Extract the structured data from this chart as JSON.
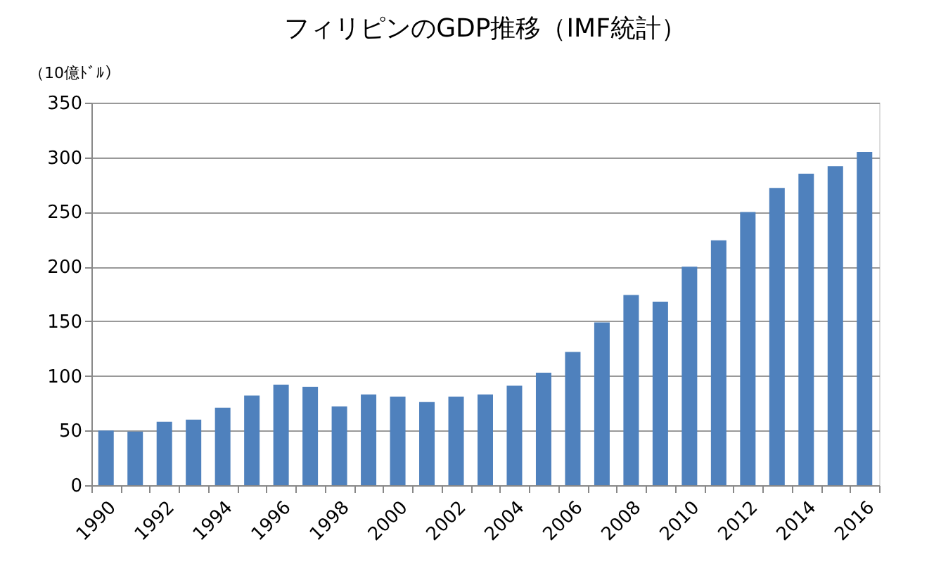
{
  "chart_data": {
    "type": "bar",
    "title": "フィリピンのGDP推移（IMF統計）",
    "ylabel": "（10億ﾄﾞﾙ）",
    "categories": [
      "1990",
      null,
      "1992",
      null,
      "1994",
      null,
      "1996",
      null,
      "1998",
      null,
      "2000",
      null,
      "2002",
      null,
      "2004",
      null,
      "2006",
      null,
      "2008",
      null,
      "2010",
      null,
      "2012",
      null,
      "2014",
      null,
      "2016"
    ],
    "values": [
      50,
      49,
      58,
      60,
      71,
      82,
      92,
      90,
      72,
      83,
      81,
      76,
      81,
      83,
      91,
      103,
      122,
      149,
      174,
      168,
      200,
      224,
      250,
      272,
      285,
      292,
      305
    ],
    "color": "#4f81bd",
    "ylim": [
      0,
      350
    ],
    "yticks": [
      0,
      50,
      100,
      150,
      200,
      250,
      300,
      350
    ],
    "grid": "y"
  }
}
